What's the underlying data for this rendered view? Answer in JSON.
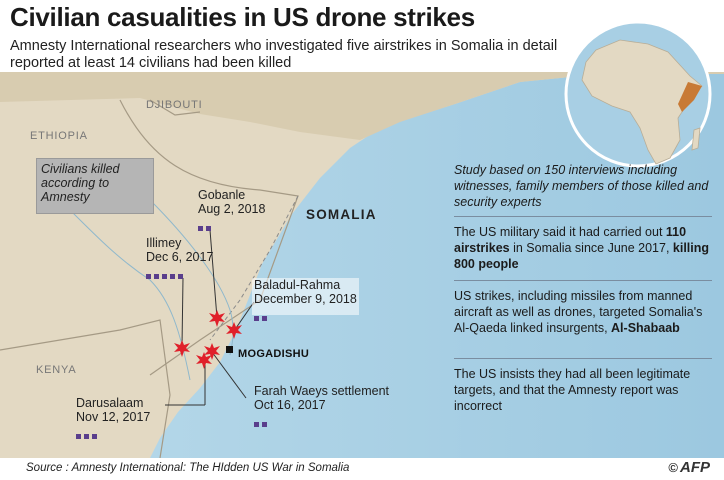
{
  "header": {
    "title": "Civilian casualities in US drone strikes",
    "subtitle": "Amnesty International researchers who investigated five airstrikes in Somalia in detail reported at least 14 civilians had been killed"
  },
  "map": {
    "countries": {
      "djibouti": "DJIBOUTI",
      "ethiopia": "ETHIOPIA",
      "somalia": "SOMALIA",
      "kenya": "KENYA"
    },
    "city": "MOGADISHU",
    "legend_text": "Civilians killed according to Amnesty",
    "strikes": [
      {
        "name": "Gobanle",
        "date": "Aug 2, 2018",
        "civilians": 2
      },
      {
        "name": "Illimey",
        "date": "Dec 6, 2017",
        "civilians": 5
      },
      {
        "name": "Baladul-Rahma",
        "date": "December 9, 2018",
        "civilians": 2
      },
      {
        "name": "Farah Waeys settlement",
        "date": "Oct 16, 2017",
        "civilians": 2
      },
      {
        "name": "Darusalaam",
        "date": "Nov 12, 2017",
        "civilians": 3
      }
    ],
    "colors": {
      "sea": "#a8cfe4",
      "land": "#e3d9c3",
      "strike": "#e0202a",
      "marker": "#5a3e8c"
    },
    "inset_icon": "africa-globe-icon"
  },
  "panel": {
    "study": "Study based on 150 interviews including witnesses, family members of those killed and security experts",
    "military_pre": "The US military said it had carried out ",
    "military_bold1": "110 airstrikes",
    "military_mid": " in Somalia since June 2017, ",
    "military_bold2": "killing 800 people",
    "strikes_pre": "US strikes, including missiles from manned aircraft as well as drones, targeted Somalia's Al-Qaeda linked insurgents, ",
    "strikes_bold": "Al-Shabaab",
    "insists": "The US insists they had all been legitimate targets, and that the Amnesty report was incorrect"
  },
  "footer": {
    "source": "Source : Amnesty International: The HIdden US War in Somalia",
    "credit_symbol": "©",
    "credit": "AFP"
  }
}
